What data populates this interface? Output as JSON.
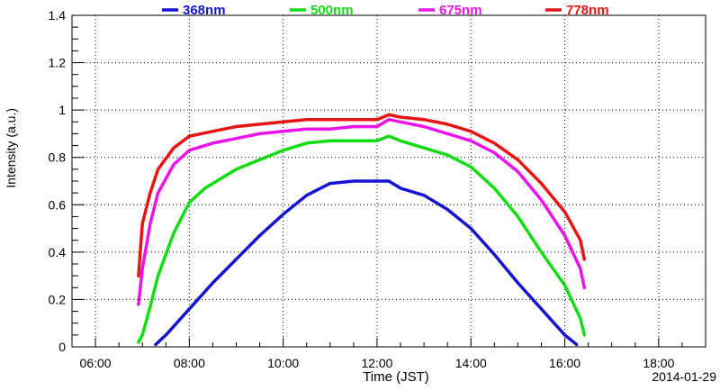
{
  "chart_data": {
    "type": "line",
    "xlabel": "Time (JST)",
    "ylabel": "Intensity (a.u.)",
    "date_label": "2014-01-29",
    "xlim": [
      "05:30",
      "19:00"
    ],
    "ylim": [
      0,
      1.4
    ],
    "grid": true,
    "legend_placement": "top",
    "x_ticks": [
      "06:00",
      "08:00",
      "10:00",
      "12:00",
      "14:00",
      "16:00",
      "18:00"
    ],
    "y_ticks": [
      "0",
      "0.2",
      "0.4",
      "0.6",
      "0.8",
      "1",
      "1.2",
      "1.4"
    ],
    "series": [
      {
        "name": "368nm",
        "color": "#1414d2",
        "x": [
          "07:17",
          "07:30",
          "08:00",
          "08:30",
          "09:00",
          "09:30",
          "10:00",
          "10:30",
          "11:00",
          "11:30",
          "12:00",
          "12:15",
          "12:30",
          "13:00",
          "13:30",
          "14:00",
          "14:30",
          "15:00",
          "15:30",
          "16:00",
          "16:15"
        ],
        "values": [
          0.01,
          0.05,
          0.16,
          0.27,
          0.37,
          0.47,
          0.56,
          0.64,
          0.69,
          0.7,
          0.7,
          0.7,
          0.67,
          0.64,
          0.58,
          0.5,
          0.39,
          0.27,
          0.16,
          0.05,
          0.01
        ]
      },
      {
        "name": "500nm",
        "color": "#14dc14",
        "x": [
          "06:55",
          "07:00",
          "07:10",
          "07:20",
          "07:40",
          "08:00",
          "08:20",
          "08:40",
          "09:00",
          "09:30",
          "10:00",
          "10:30",
          "11:00",
          "11:30",
          "12:00",
          "12:15",
          "12:30",
          "13:00",
          "13:30",
          "14:00",
          "14:30",
          "15:00",
          "15:30",
          "16:00",
          "16:20",
          "16:25"
        ],
        "values": [
          0.02,
          0.05,
          0.17,
          0.3,
          0.48,
          0.61,
          0.67,
          0.71,
          0.75,
          0.79,
          0.83,
          0.86,
          0.87,
          0.87,
          0.87,
          0.89,
          0.87,
          0.84,
          0.81,
          0.76,
          0.67,
          0.55,
          0.4,
          0.26,
          0.12,
          0.05
        ]
      },
      {
        "name": "675nm",
        "color": "#ea14ea",
        "x": [
          "06:55",
          "07:00",
          "07:10",
          "07:20",
          "07:40",
          "08:00",
          "08:30",
          "09:00",
          "09:30",
          "10:00",
          "10:30",
          "11:00",
          "11:30",
          "12:00",
          "12:15",
          "12:30",
          "13:00",
          "13:30",
          "14:00",
          "14:30",
          "15:00",
          "15:30",
          "16:00",
          "16:20",
          "16:25"
        ],
        "values": [
          0.18,
          0.33,
          0.52,
          0.65,
          0.77,
          0.83,
          0.86,
          0.88,
          0.9,
          0.91,
          0.92,
          0.92,
          0.93,
          0.93,
          0.96,
          0.95,
          0.93,
          0.9,
          0.87,
          0.82,
          0.74,
          0.62,
          0.47,
          0.33,
          0.25
        ]
      },
      {
        "name": "778nm",
        "color": "#e61414",
        "x": [
          "06:55",
          "07:00",
          "07:10",
          "07:20",
          "07:40",
          "08:00",
          "08:30",
          "09:00",
          "09:30",
          "10:00",
          "10:30",
          "11:00",
          "11:30",
          "12:00",
          "12:15",
          "12:30",
          "13:00",
          "13:30",
          "14:00",
          "14:30",
          "15:00",
          "15:30",
          "16:00",
          "16:20",
          "16:25"
        ],
        "values": [
          0.3,
          0.52,
          0.65,
          0.75,
          0.84,
          0.89,
          0.91,
          0.93,
          0.94,
          0.95,
          0.96,
          0.96,
          0.96,
          0.96,
          0.98,
          0.97,
          0.96,
          0.94,
          0.91,
          0.86,
          0.79,
          0.69,
          0.57,
          0.45,
          0.37
        ]
      }
    ]
  }
}
